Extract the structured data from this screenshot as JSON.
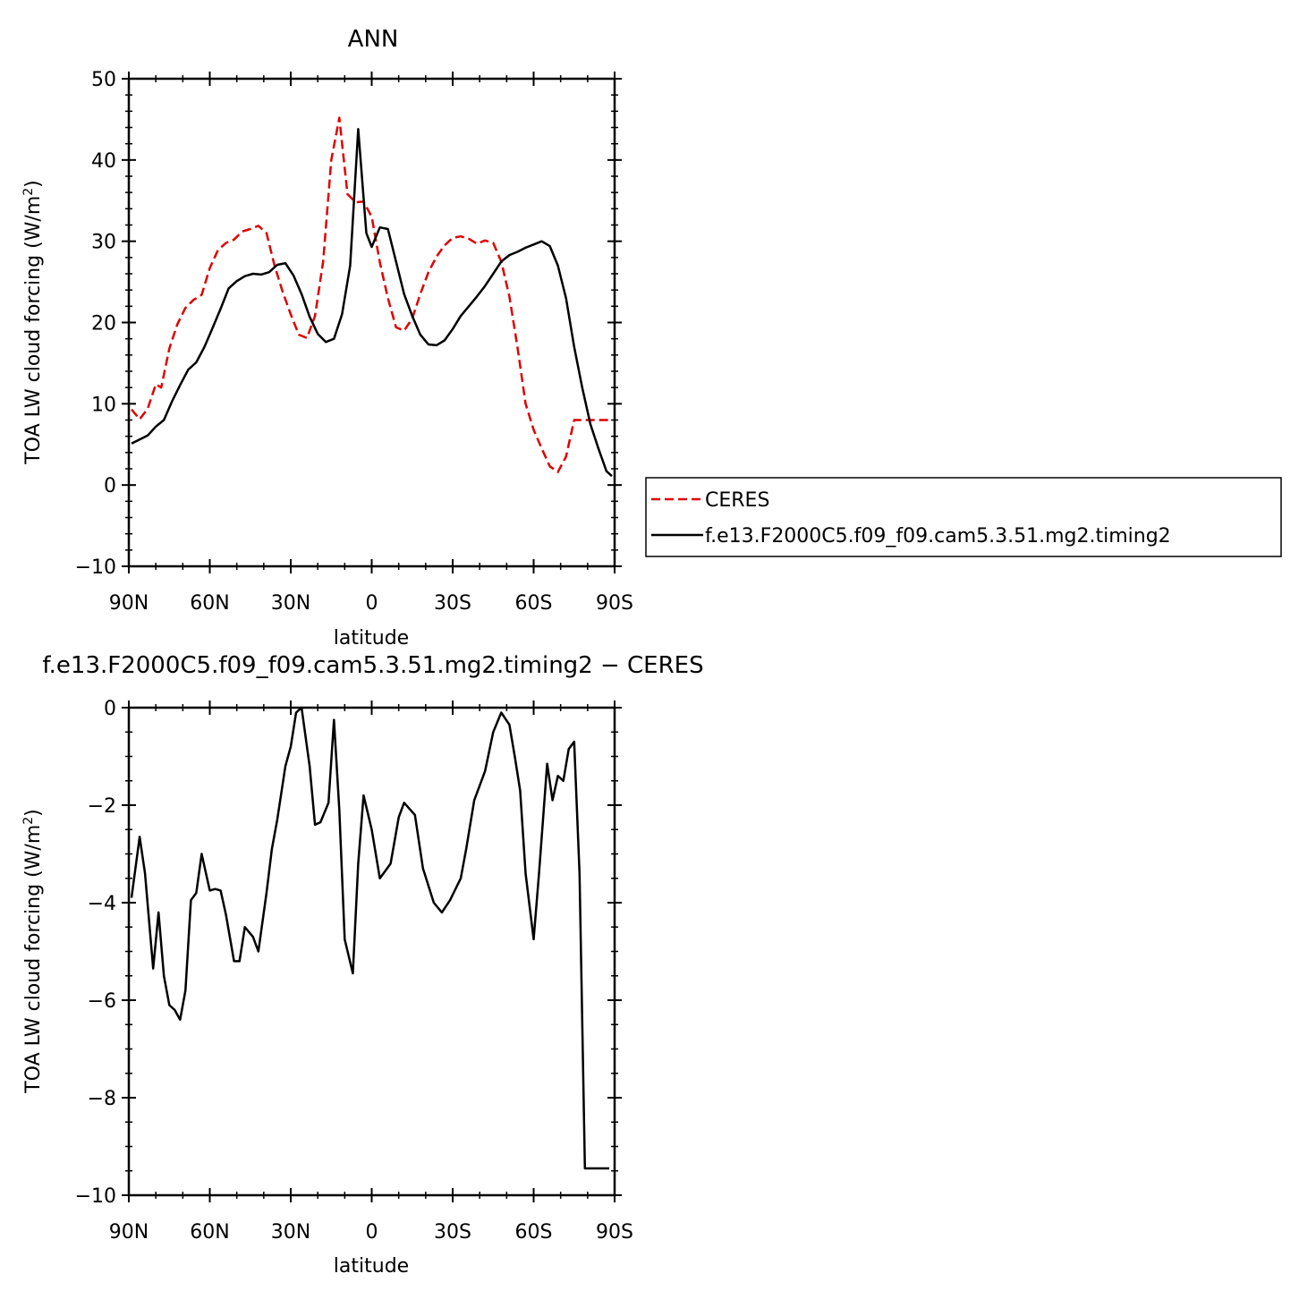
{
  "chart_data": [
    {
      "type": "line",
      "title": "ANN",
      "xlabel": "latitude",
      "ylabel_main": "TOA LW cloud forcing (W/m",
      "ylabel_sup": "2",
      "ylabel_close": ")",
      "xlim": [
        90,
        -90
      ],
      "ylim": [
        -10,
        50
      ],
      "x_ticks": [
        90,
        60,
        30,
        0,
        -30,
        -60,
        -90
      ],
      "x_tick_labels": [
        "90N",
        "60N",
        "30N",
        "0",
        "30S",
        "60S",
        "90S"
      ],
      "y_ticks": [
        -10,
        0,
        10,
        20,
        30,
        40,
        50
      ],
      "y_tick_labels": [
        "−10",
        "0",
        "10",
        "20",
        "30",
        "40",
        "50"
      ],
      "legend": {
        "placement": "right",
        "entries": [
          "CERES",
          "f.e13.F2000C5.f09_f09.cam5.3.51.mg2.timing2"
        ]
      },
      "series": [
        {
          "name": "CERES",
          "color": "#e00000",
          "dash": true,
          "x": [
            89,
            86,
            83,
            80,
            78,
            75,
            72,
            69,
            66,
            63,
            60,
            57,
            54,
            51,
            48,
            45,
            42,
            39,
            36,
            33,
            30,
            27,
            24,
            21,
            18,
            15,
            12,
            9,
            6,
            3,
            0,
            -3,
            -6,
            -9,
            -12,
            -15,
            -18,
            -21,
            -24,
            -27,
            -30,
            -33,
            -36,
            -39,
            -42,
            -45,
            -48,
            -51,
            -54,
            -57,
            -60,
            -63,
            -66,
            -69,
            -72,
            -75,
            -78,
            -81,
            -84,
            -87,
            -89
          ],
          "y": [
            9.3,
            8.1,
            9.4,
            12.4,
            12.0,
            16.8,
            19.8,
            21.8,
            22.8,
            23.4,
            26.7,
            28.9,
            29.8,
            30.2,
            31.2,
            31.5,
            31.9,
            31.0,
            27.0,
            23.8,
            21.0,
            18.5,
            18.1,
            20.8,
            27.5,
            40.0,
            45.2,
            35.8,
            34.8,
            34.9,
            33.0,
            27.4,
            23.0,
            19.4,
            19.0,
            20.5,
            23.5,
            26.2,
            28.1,
            29.5,
            30.4,
            30.6,
            30.3,
            29.7,
            30.1,
            29.8,
            27.5,
            23.2,
            17.0,
            10.0,
            6.8,
            4.5,
            2.3,
            1.6,
            3.5,
            8.0,
            8.0,
            8.0,
            8.0,
            8.0,
            8.0
          ]
        },
        {
          "name": "f.e13.F2000C5.f09_f09.cam5.3.51.mg2.timing2",
          "color": "#000000",
          "dash": false,
          "x": [
            89,
            86,
            83,
            80,
            77,
            74,
            71,
            68,
            65,
            62,
            59,
            56,
            53,
            50,
            47,
            44,
            41,
            38,
            35,
            32,
            29,
            26,
            23,
            20,
            17,
            14,
            11,
            8,
            5,
            2,
            0,
            -3,
            -6,
            -9,
            -12,
            -15,
            -18,
            -21,
            -24,
            -27,
            -30,
            -33,
            -36,
            -39,
            -42,
            -45,
            -48,
            -51,
            -54,
            -57,
            -60,
            -63,
            -66,
            -69,
            -72,
            -75,
            -78,
            -81,
            -84,
            -87,
            -89
          ],
          "y": [
            5.1,
            5.6,
            6.1,
            7.2,
            8.0,
            10.3,
            12.3,
            14.2,
            15.1,
            17.0,
            19.3,
            21.7,
            24.2,
            25.1,
            25.7,
            26.0,
            25.9,
            26.2,
            27.1,
            27.3,
            25.8,
            23.5,
            20.7,
            18.6,
            17.6,
            18.0,
            21.0,
            27.0,
            43.8,
            31.0,
            29.3,
            31.7,
            31.5,
            27.5,
            23.5,
            20.8,
            18.5,
            17.3,
            17.2,
            17.8,
            19.2,
            20.8,
            22.0,
            23.2,
            24.5,
            26.0,
            27.5,
            28.3,
            28.7,
            29.2,
            29.6,
            30.0,
            29.4,
            27.0,
            23.0,
            17.0,
            12.0,
            7.5,
            4.5,
            1.7,
            1.1
          ]
        }
      ]
    },
    {
      "type": "line",
      "title": "f.e13.F2000C5.f09_f09.cam5.3.51.mg2.timing2 − CERES",
      "xlabel": "latitude",
      "ylabel_main": "TOA LW cloud forcing (W/m",
      "ylabel_sup": "2",
      "ylabel_close": ")",
      "xlim": [
        90,
        -90
      ],
      "ylim": [
        -10,
        0
      ],
      "x_ticks": [
        90,
        60,
        30,
        0,
        -30,
        -60,
        -90
      ],
      "x_tick_labels": [
        "90N",
        "60N",
        "30N",
        "0",
        "30S",
        "60S",
        "90S"
      ],
      "y_ticks": [
        -10,
        -8,
        -6,
        -4,
        -2,
        0
      ],
      "y_tick_labels": [
        "−10",
        "−8",
        "−6",
        "−4",
        "−2",
        "0"
      ],
      "series": [
        {
          "color": "#000000",
          "dash": false,
          "x": [
            89,
            86,
            84,
            81,
            79,
            77,
            75,
            73,
            71,
            69,
            67,
            65,
            63,
            60,
            58,
            56,
            54,
            51,
            49,
            47,
            44,
            42,
            39,
            37,
            35,
            32,
            30,
            28,
            26,
            23,
            21,
            19,
            16,
            14,
            12,
            10,
            7,
            5,
            3,
            0,
            -3,
            -5,
            -7,
            -10,
            -12,
            -16,
            -19,
            -23,
            -26,
            -29,
            -33,
            -35,
            -38,
            -42,
            -45,
            -48,
            -51,
            -53,
            -55,
            -57,
            -60,
            -62,
            -65,
            -67,
            -69,
            -71,
            -73,
            -75,
            -77,
            -79,
            -82,
            -84,
            -86,
            -88
          ],
          "y": [
            -3.9,
            -2.65,
            -3.4,
            -5.35,
            -4.2,
            -5.5,
            -6.1,
            -6.2,
            -6.4,
            -5.8,
            -3.95,
            -3.8,
            -3.0,
            -3.75,
            -3.72,
            -3.75,
            -4.25,
            -5.2,
            -5.2,
            -4.5,
            -4.7,
            -5.0,
            -3.8,
            -2.9,
            -2.3,
            -1.2,
            -0.8,
            -0.1,
            -0.0,
            -1.2,
            -2.4,
            -2.35,
            -1.95,
            -0.25,
            -2.1,
            -4.75,
            -5.45,
            -3.2,
            -1.8,
            -2.5,
            -3.5,
            -3.35,
            -3.2,
            -2.25,
            -1.95,
            -2.2,
            -3.3,
            -4.0,
            -4.2,
            -3.95,
            -3.5,
            -2.9,
            -1.9,
            -1.3,
            -0.5,
            -0.1,
            -0.35,
            -1.0,
            -1.7,
            -3.4,
            -4.75,
            -3.4,
            -1.15,
            -1.9,
            -1.4,
            -1.5,
            -0.85,
            -0.7,
            -3.4,
            -9.45,
            -9.45,
            -9.45,
            -9.45,
            -9.45
          ]
        }
      ]
    }
  ]
}
